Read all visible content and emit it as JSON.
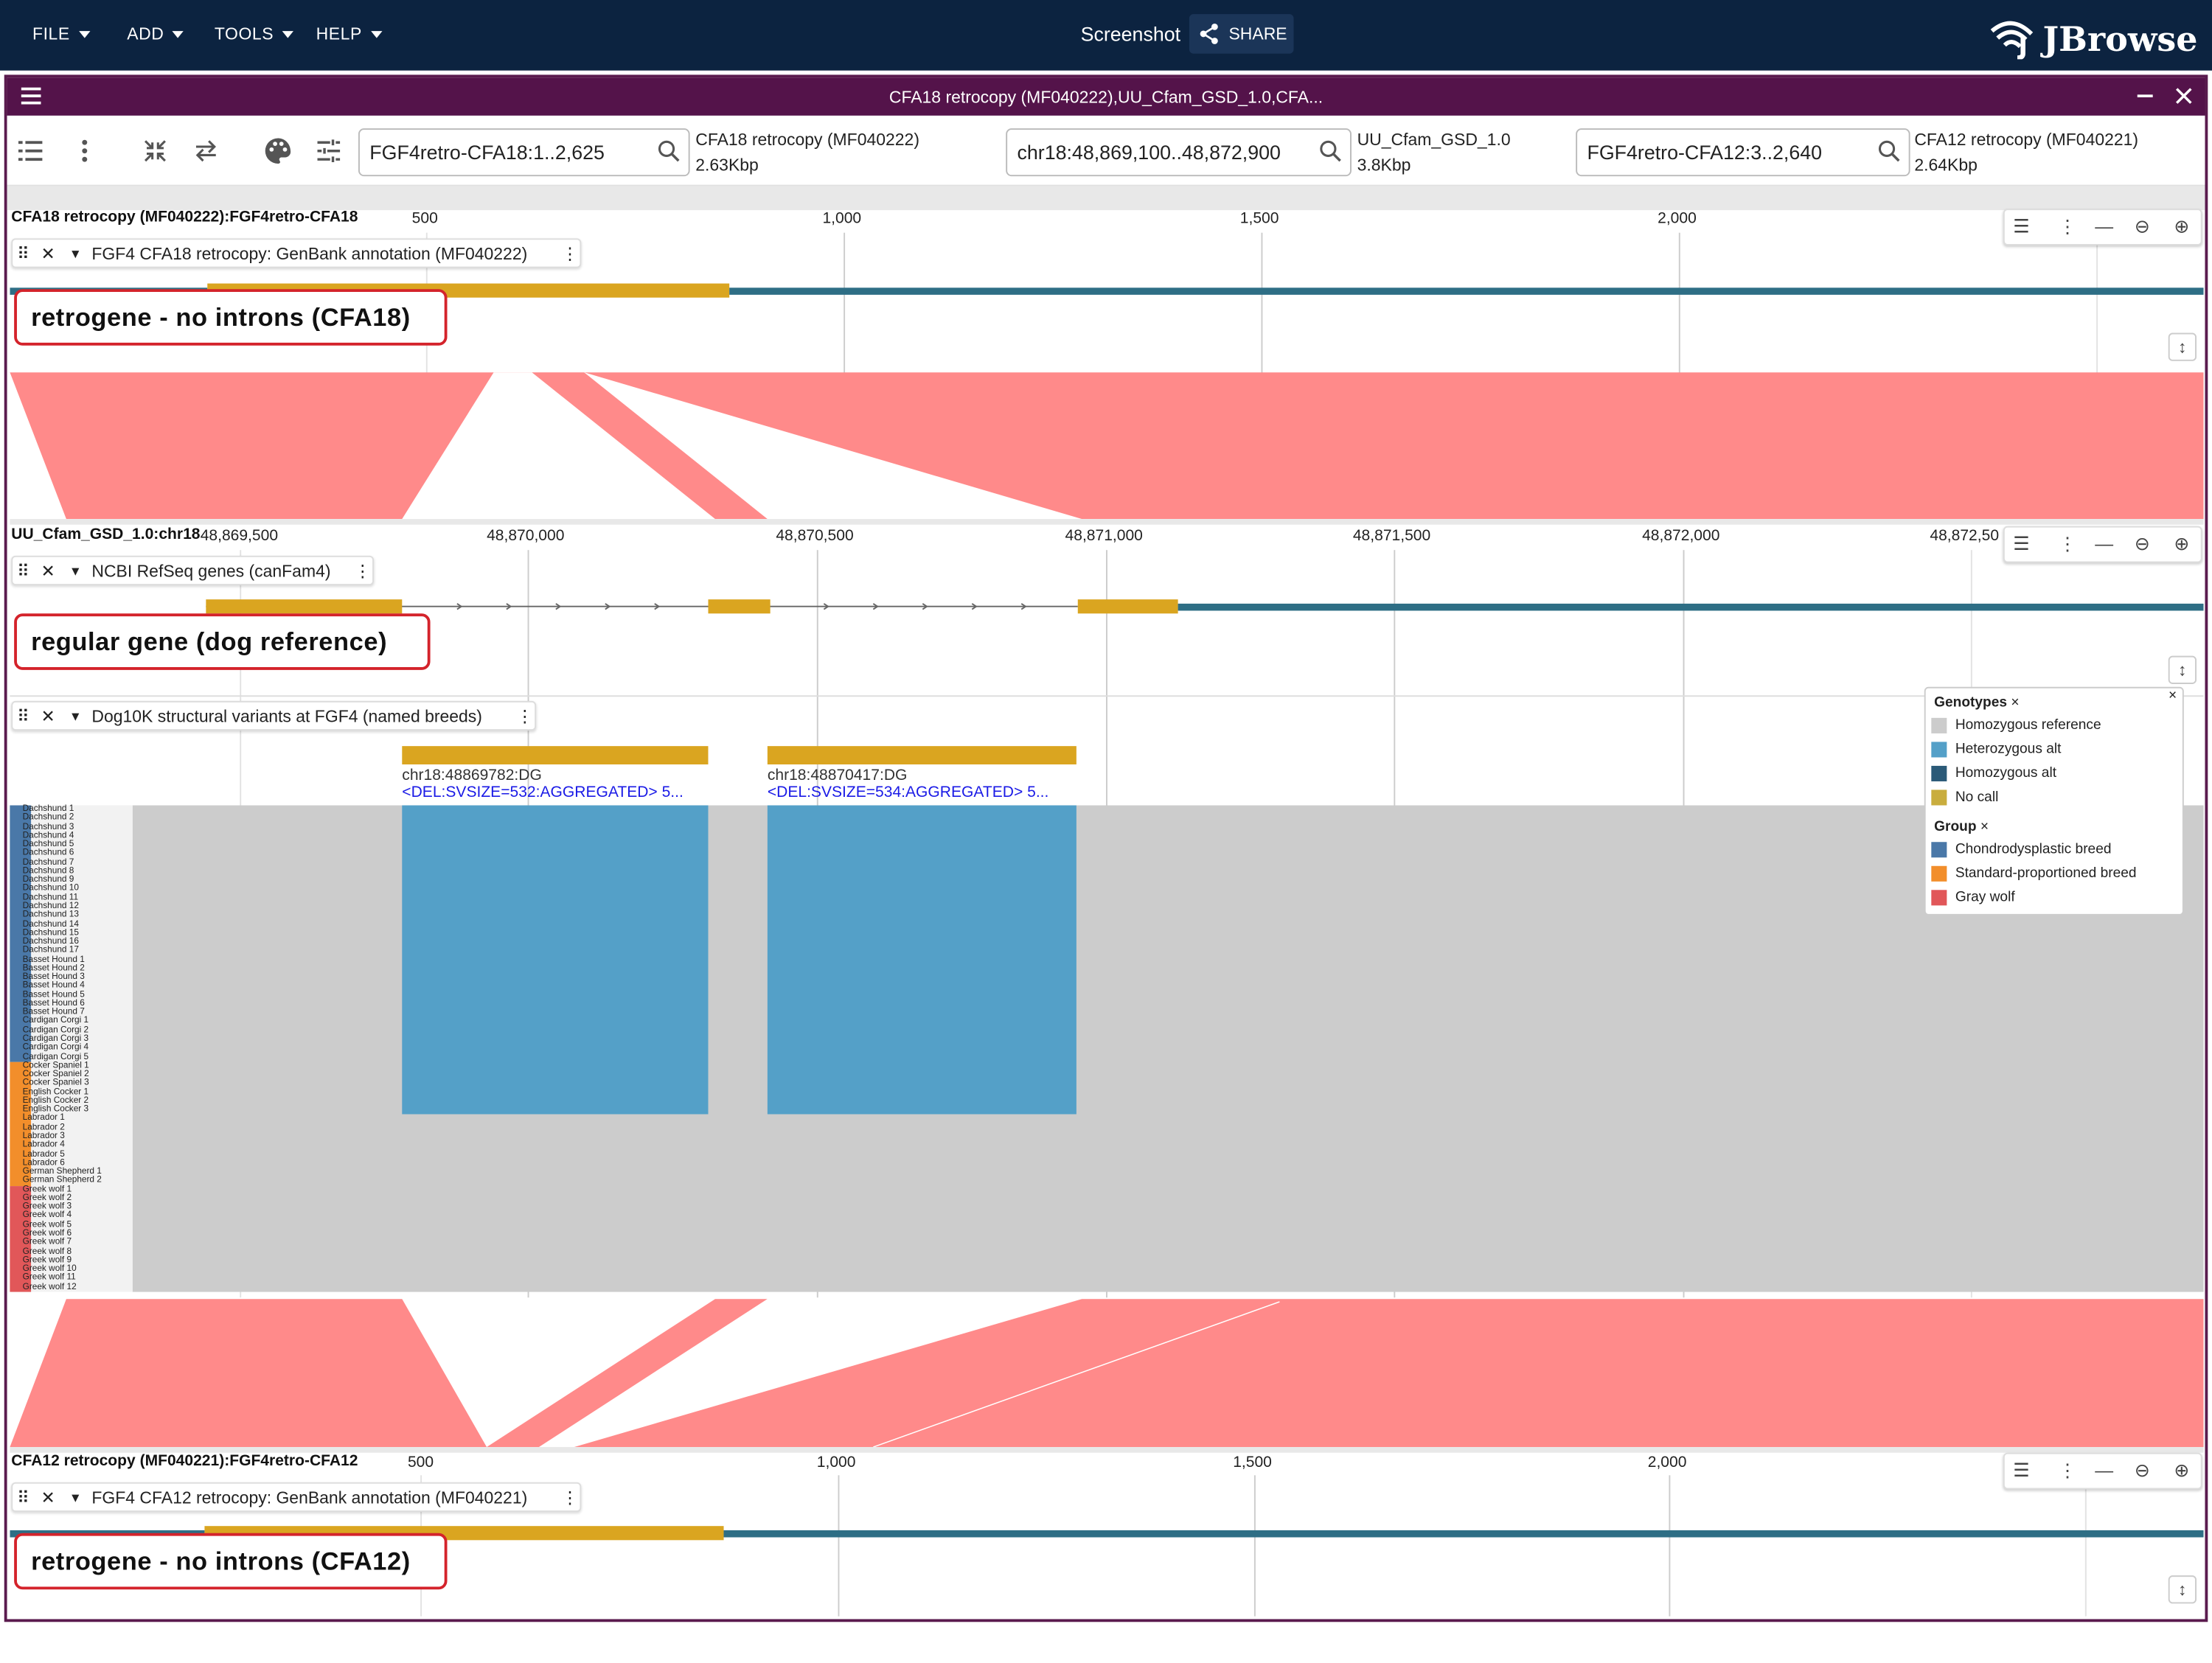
{
  "menu": {
    "file": "FILE",
    "add": "ADD",
    "tools": "TOOLS",
    "help": "HELP"
  },
  "session": {
    "name": "Screenshot",
    "share": "SHARE"
  },
  "logo": {
    "text": "JBrowse"
  },
  "view": {
    "title": "CFA18 retrocopy (MF040222),UU_Cfam_GSD_1.0,CFA..."
  },
  "locations": [
    {
      "value": "FGF4retro-CFA18:1..2,625",
      "assembly": "CFA18 retrocopy (MF040222)",
      "size": "2.63Kbp"
    },
    {
      "value": "chr18:48,869,100..48,872,900",
      "assembly": "UU_Cfam_GSD_1.0",
      "size": "3.8Kbp"
    },
    {
      "value": "FGF4retro-CFA12:3..2,640",
      "assembly": "CFA12 retrocopy (MF040221)",
      "size": "2.64Kbp"
    }
  ],
  "rows": [
    {
      "ruler_name": "CFA18 retrocopy (MF040222):FGF4retro-CFA18",
      "ticks": [
        "500",
        "1,000",
        "1,500",
        "2,000"
      ],
      "track": "FGF4 CFA18 retrocopy: GenBank annotation (MF040222)",
      "callout": "retrogene - no introns (CFA18)"
    },
    {
      "ruler_name": "UU_Cfam_GSD_1.0:chr18",
      "ticks": [
        "48,869,500",
        "48,870,000",
        "48,870,500",
        "48,871,000",
        "48,871,500",
        "48,872,000",
        "48,872,50"
      ],
      "track": "NCBI RefSeq genes (canFam4)",
      "callout": "regular gene (dog reference)",
      "track2": "Dog10K structural variants at FGF4 (named breeds)"
    },
    {
      "ruler_name": "CFA12 retrocopy (MF040221):FGF4retro-CFA12",
      "ticks": [
        "500",
        "1,000",
        "1,500",
        "2,000"
      ],
      "track": "FGF4 CFA12 retrocopy: GenBank annotation (MF040221)",
      "callout": "retrogene - no introns (CFA12)"
    }
  ],
  "variants": [
    {
      "id": "chr18:48869782:DG",
      "desc": "<DEL:SVSIZE=532:AGGREGATED> 5..."
    },
    {
      "id": "chr18:48870417:DG",
      "desc": "<DEL:SVSIZE=534:AGGREGATED> 5..."
    }
  ],
  "samples": [
    "Dachshund 1",
    "Dachshund 2",
    "Dachshund 3",
    "Dachshund 4",
    "Dachshund 5",
    "Dachshund 6",
    "Dachshund 7",
    "Dachshund 8",
    "Dachshund 9",
    "Dachshund 10",
    "Dachshund 11",
    "Dachshund 12",
    "Dachshund 13",
    "Dachshund 14",
    "Dachshund 15",
    "Dachshund 16",
    "Dachshund 17",
    "Basset Hound 1",
    "Basset Hound 2",
    "Basset Hound 3",
    "Basset Hound 4",
    "Basset Hound 5",
    "Basset Hound 6",
    "Basset Hound 7",
    "Cardigan Corgi 1",
    "Cardigan Corgi 2",
    "Cardigan Corgi 3",
    "Cardigan Corgi 4",
    "Cardigan Corgi 5",
    "Cocker Spaniel 1",
    "Cocker Spaniel 2",
    "Cocker Spaniel 3",
    "English Cocker 1",
    "English Cocker 2",
    "English Cocker 3",
    "Labrador 1",
    "Labrador 2",
    "Labrador 3",
    "Labrador 4",
    "Labrador 5",
    "Labrador 6",
    "German Shepherd 1",
    "German Shepherd 2",
    "Greek wolf 1",
    "Greek wolf 2",
    "Greek wolf 3",
    "Greek wolf 4",
    "Greek wolf 5",
    "Greek wolf 6",
    "Greek wolf 7",
    "Greek wolf 8",
    "Greek wolf 9",
    "Greek wolf 10",
    "Greek wolf 11",
    "Greek wolf 12"
  ],
  "legend": {
    "genotypes_title": "Genotypes",
    "genotypes": [
      {
        "label": "Homozygous reference",
        "color": "#cccccc"
      },
      {
        "label": "Heterozygous alt",
        "color": "#54a0c8"
      },
      {
        "label": "Homozygous alt",
        "color": "#2b5a78"
      },
      {
        "label": "No call",
        "color": "#c9ad3e"
      }
    ],
    "group_title": "Group",
    "groups": [
      {
        "label": "Chondrodysplastic breed",
        "color": "#4a78a8"
      },
      {
        "label": "Standard-proportioned breed",
        "color": "#f28e2b"
      },
      {
        "label": "Gray wolf",
        "color": "#e15759"
      }
    ]
  },
  "colors": {
    "appbar": "#0c2340",
    "view_title": "#54134a",
    "cds": "#daa520",
    "utr": "#2e6e85",
    "synteny": "#ff8a8a",
    "callout": "#d4232b"
  }
}
